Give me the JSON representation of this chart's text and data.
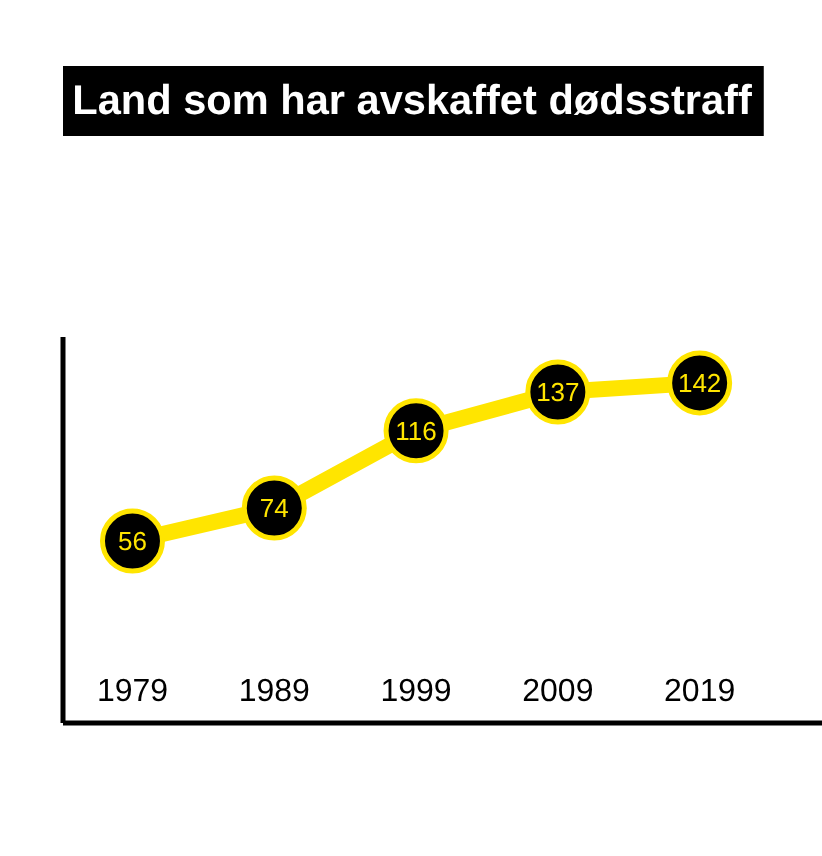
{
  "chart_data": {
    "type": "line",
    "title": "Land som har avskaffet dødsstraff",
    "categories": [
      "1979",
      "1989",
      "1999",
      "2009",
      "2019"
    ],
    "values": [
      56,
      74,
      116,
      137,
      142
    ],
    "color": "#ffe500",
    "marker": "circle",
    "line_style": "solid",
    "data_labels": true,
    "tick_labels": "x"
  }
}
